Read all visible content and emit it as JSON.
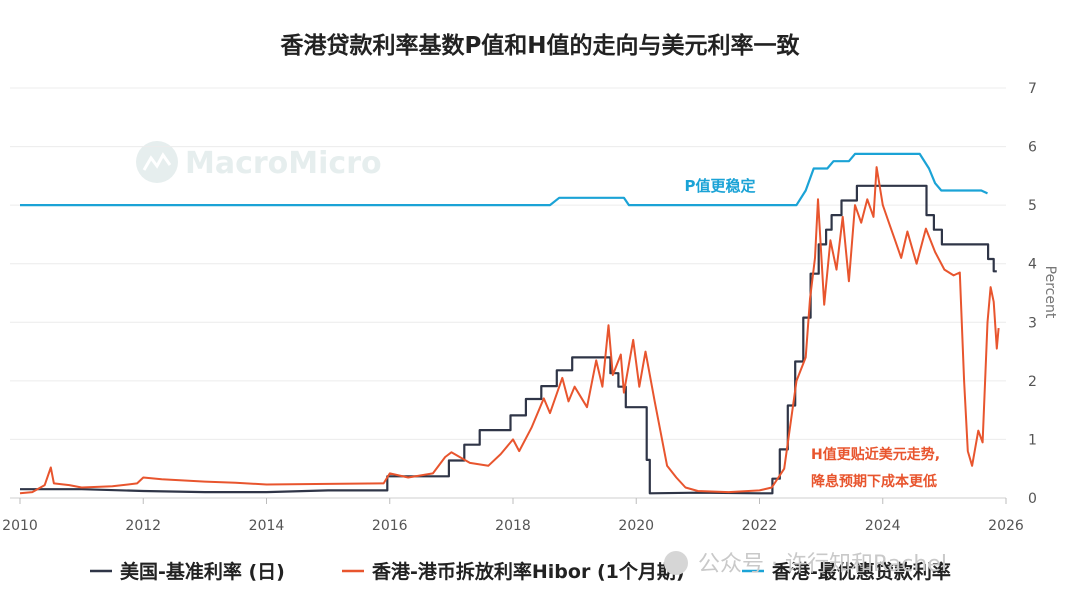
{
  "chart_data": {
    "type": "line",
    "title": "香港贷款利率基数P值和H值的走向与美元利率一致",
    "ylabel": "Percent",
    "xlim": [
      2010,
      2026
    ],
    "ylim": [
      0,
      7
    ],
    "x_ticks": [
      "2010",
      "2012",
      "2014",
      "2016",
      "2018",
      "2020",
      "2022",
      "2024",
      "2026"
    ],
    "y_ticks": [
      "0",
      "1",
      "2",
      "3",
      "4",
      "5",
      "6",
      "7"
    ],
    "grid": true,
    "legend_position": "bottom",
    "annotations": {
      "p_note": "P值更稳定",
      "h_note_line1": "H值更贴近美元走势,",
      "h_note_line2": "降息预期下成本更低"
    },
    "series": [
      {
        "name": "美国-基准利率 (日)",
        "color": "#2f3547",
        "points": [
          [
            2010.0,
            0.15
          ],
          [
            2011.0,
            0.15
          ],
          [
            2012.0,
            0.12
          ],
          [
            2013.0,
            0.1
          ],
          [
            2014.0,
            0.1
          ],
          [
            2015.0,
            0.13
          ],
          [
            2015.96,
            0.13
          ],
          [
            2015.96,
            0.37
          ],
          [
            2016.96,
            0.37
          ],
          [
            2016.96,
            0.64
          ],
          [
            2017.21,
            0.64
          ],
          [
            2017.21,
            0.91
          ],
          [
            2017.46,
            0.91
          ],
          [
            2017.46,
            1.16
          ],
          [
            2017.96,
            1.16
          ],
          [
            2017.96,
            1.41
          ],
          [
            2018.21,
            1.41
          ],
          [
            2018.21,
            1.69
          ],
          [
            2018.46,
            1.69
          ],
          [
            2018.46,
            1.91
          ],
          [
            2018.71,
            1.91
          ],
          [
            2018.71,
            2.18
          ],
          [
            2018.96,
            2.18
          ],
          [
            2018.96,
            2.4
          ],
          [
            2019.58,
            2.4
          ],
          [
            2019.58,
            2.13
          ],
          [
            2019.71,
            2.13
          ],
          [
            2019.71,
            1.9
          ],
          [
            2019.83,
            1.9
          ],
          [
            2019.83,
            1.55
          ],
          [
            2020.17,
            1.55
          ],
          [
            2020.17,
            0.65
          ],
          [
            2020.22,
            0.65
          ],
          [
            2020.22,
            0.08
          ],
          [
            2021.0,
            0.09
          ],
          [
            2022.0,
            0.08
          ],
          [
            2022.21,
            0.08
          ],
          [
            2022.21,
            0.33
          ],
          [
            2022.33,
            0.33
          ],
          [
            2022.33,
            0.83
          ],
          [
            2022.46,
            0.83
          ],
          [
            2022.46,
            1.58
          ],
          [
            2022.58,
            1.58
          ],
          [
            2022.58,
            2.33
          ],
          [
            2022.71,
            2.33
          ],
          [
            2022.71,
            3.08
          ],
          [
            2022.83,
            3.08
          ],
          [
            2022.83,
            3.83
          ],
          [
            2022.96,
            3.83
          ],
          [
            2022.96,
            4.33
          ],
          [
            2023.08,
            4.33
          ],
          [
            2023.08,
            4.58
          ],
          [
            2023.17,
            4.58
          ],
          [
            2023.17,
            4.83
          ],
          [
            2023.33,
            4.83
          ],
          [
            2023.33,
            5.08
          ],
          [
            2023.58,
            5.08
          ],
          [
            2023.58,
            5.33
          ],
          [
            2024.71,
            5.33
          ],
          [
            2024.71,
            4.83
          ],
          [
            2024.83,
            4.83
          ],
          [
            2024.83,
            4.58
          ],
          [
            2024.96,
            4.58
          ],
          [
            2024.96,
            4.33
          ],
          [
            2025.71,
            4.33
          ],
          [
            2025.71,
            4.08
          ],
          [
            2025.8,
            4.08
          ],
          [
            2025.8,
            3.87
          ],
          [
            2025.85,
            3.87
          ]
        ]
      },
      {
        "name": "香港-港币拆放利率Hibor (1个月期)",
        "color": "#e8552e",
        "points": [
          [
            2010.0,
            0.08
          ],
          [
            2010.2,
            0.1
          ],
          [
            2010.4,
            0.22
          ],
          [
            2010.5,
            0.52
          ],
          [
            2010.55,
            0.25
          ],
          [
            2010.8,
            0.22
          ],
          [
            2011.0,
            0.18
          ],
          [
            2011.5,
            0.2
          ],
          [
            2011.9,
            0.25
          ],
          [
            2012.0,
            0.35
          ],
          [
            2012.3,
            0.32
          ],
          [
            2013.0,
            0.28
          ],
          [
            2013.5,
            0.26
          ],
          [
            2014.0,
            0.23
          ],
          [
            2015.0,
            0.24
          ],
          [
            2015.9,
            0.25
          ],
          [
            2016.0,
            0.42
          ],
          [
            2016.3,
            0.35
          ],
          [
            2016.7,
            0.42
          ],
          [
            2016.9,
            0.7
          ],
          [
            2017.0,
            0.78
          ],
          [
            2017.3,
            0.6
          ],
          [
            2017.6,
            0.55
          ],
          [
            2017.8,
            0.75
          ],
          [
            2018.0,
            1.0
          ],
          [
            2018.1,
            0.8
          ],
          [
            2018.3,
            1.2
          ],
          [
            2018.5,
            1.7
          ],
          [
            2018.6,
            1.45
          ],
          [
            2018.8,
            2.05
          ],
          [
            2018.9,
            1.65
          ],
          [
            2019.0,
            1.9
          ],
          [
            2019.2,
            1.55
          ],
          [
            2019.35,
            2.35
          ],
          [
            2019.45,
            1.9
          ],
          [
            2019.55,
            2.95
          ],
          [
            2019.62,
            2.1
          ],
          [
            2019.75,
            2.45
          ],
          [
            2019.8,
            1.8
          ],
          [
            2019.95,
            2.7
          ],
          [
            2020.05,
            1.9
          ],
          [
            2020.15,
            2.5
          ],
          [
            2020.3,
            1.65
          ],
          [
            2020.4,
            1.1
          ],
          [
            2020.5,
            0.55
          ],
          [
            2020.65,
            0.35
          ],
          [
            2020.8,
            0.18
          ],
          [
            2021.0,
            0.12
          ],
          [
            2021.5,
            0.1
          ],
          [
            2022.0,
            0.13
          ],
          [
            2022.2,
            0.18
          ],
          [
            2022.4,
            0.5
          ],
          [
            2022.6,
            2.0
          ],
          [
            2022.75,
            2.4
          ],
          [
            2022.82,
            3.4
          ],
          [
            2022.9,
            4.1
          ],
          [
            2022.95,
            5.1
          ],
          [
            2023.05,
            3.3
          ],
          [
            2023.15,
            4.4
          ],
          [
            2023.25,
            3.9
          ],
          [
            2023.35,
            4.8
          ],
          [
            2023.45,
            3.7
          ],
          [
            2023.55,
            5.0
          ],
          [
            2023.65,
            4.7
          ],
          [
            2023.75,
            5.1
          ],
          [
            2023.85,
            4.8
          ],
          [
            2023.9,
            5.65
          ],
          [
            2024.0,
            5.0
          ],
          [
            2024.1,
            4.7
          ],
          [
            2024.2,
            4.4
          ],
          [
            2024.3,
            4.1
          ],
          [
            2024.4,
            4.55
          ],
          [
            2024.55,
            4.0
          ],
          [
            2024.7,
            4.6
          ],
          [
            2024.85,
            4.2
          ],
          [
            2025.0,
            3.9
          ],
          [
            2025.15,
            3.8
          ],
          [
            2025.25,
            3.85
          ],
          [
            2025.32,
            2.0
          ],
          [
            2025.38,
            0.8
          ],
          [
            2025.45,
            0.55
          ],
          [
            2025.55,
            1.15
          ],
          [
            2025.62,
            0.95
          ],
          [
            2025.7,
            3.0
          ],
          [
            2025.75,
            3.6
          ],
          [
            2025.8,
            3.35
          ],
          [
            2025.85,
            2.55
          ],
          [
            2025.88,
            2.9
          ]
        ]
      },
      {
        "name": "香港-最优惠贷款利率",
        "color": "#1ba3d6",
        "points": [
          [
            2010.0,
            5.0
          ],
          [
            2018.6,
            5.0
          ],
          [
            2018.75,
            5.125
          ],
          [
            2019.8,
            5.125
          ],
          [
            2019.88,
            5.0
          ],
          [
            2022.6,
            5.0
          ],
          [
            2022.75,
            5.25
          ],
          [
            2022.88,
            5.625
          ],
          [
            2023.1,
            5.625
          ],
          [
            2023.2,
            5.75
          ],
          [
            2023.45,
            5.75
          ],
          [
            2023.55,
            5.875
          ],
          [
            2024.6,
            5.875
          ],
          [
            2024.75,
            5.625
          ],
          [
            2024.85,
            5.375
          ],
          [
            2024.95,
            5.25
          ],
          [
            2025.6,
            5.25
          ],
          [
            2025.7,
            5.2
          ]
        ]
      }
    ]
  },
  "watermark": {
    "brand": "MacroMicro",
    "wechat": "公众号 · 许行知和Rachel"
  }
}
